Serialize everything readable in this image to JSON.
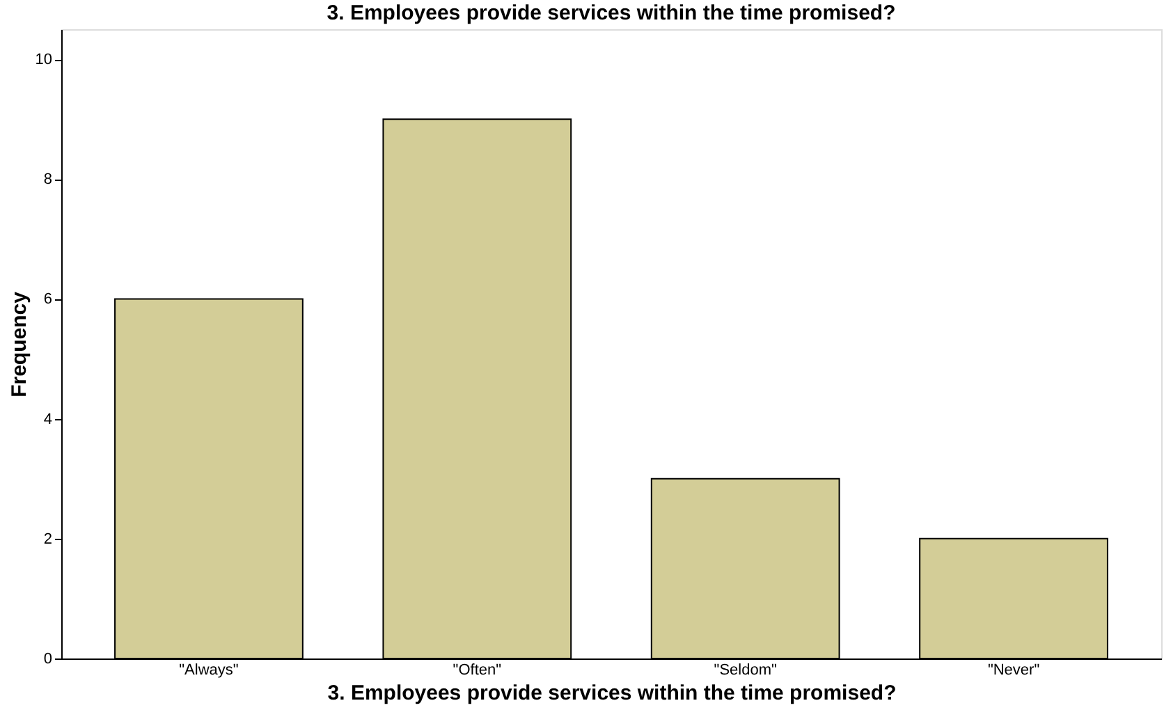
{
  "chart_data": {
    "type": "bar",
    "title": "3. Employees provide services within the time promised?",
    "xlabel": "3. Employees provide services within the time promised?",
    "ylabel": "Frequency",
    "categories": [
      "\"Always\"",
      "\"Often\"",
      "\"Seldom\"",
      "\"Never\""
    ],
    "values": [
      6,
      9,
      3,
      2
    ],
    "color": "#d3cd97",
    "ylim": [
      0,
      10.5
    ],
    "yticks": [
      0,
      2,
      4,
      6,
      8,
      10
    ],
    "grid": false
  }
}
